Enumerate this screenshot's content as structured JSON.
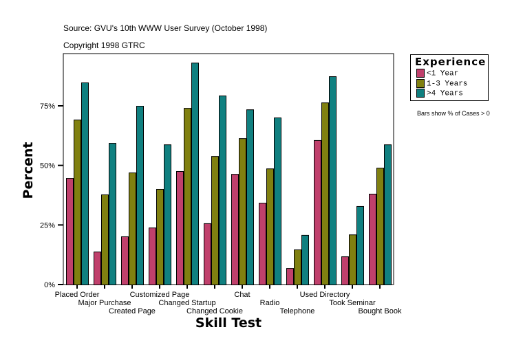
{
  "header": {
    "source": "Source: GVU's 10th WWW User Survey (October 1998)",
    "copyright": "Copyright 1998 GTRC"
  },
  "note": "Bars show % of Cases > 0",
  "chart_data": {
    "type": "bar",
    "xlabel": "Skill Test",
    "ylabel": "Percent",
    "ylim": [
      0,
      100
    ],
    "yticks": [
      "0%",
      "25%",
      "50%",
      "75%"
    ],
    "ytick_values": [
      0,
      25,
      50,
      75
    ],
    "legend_title": "Experience",
    "legend_position": "right",
    "grid": false,
    "categories": [
      "Placed Order",
      "Major Purchase",
      "Created Page",
      "Customized Page",
      "Changed Startup",
      "Changed Cookie",
      "Chat",
      "Radio",
      "Telephone",
      "Used Directory",
      "Took Seminar",
      "Bought Book"
    ],
    "series": [
      {
        "name": "<1 Year",
        "color": "#c0406c",
        "values": [
          44.7,
          13.8,
          20.2,
          23.9,
          47.6,
          25.7,
          46.4,
          34.3,
          6.9,
          60.6,
          11.8,
          38.1
        ]
      },
      {
        "name": "1-3 Years",
        "color": "#808010",
        "values": [
          69.2,
          37.8,
          47.0,
          40.1,
          74.1,
          53.9,
          61.4,
          48.7,
          14.7,
          76.4,
          21.0,
          49.0
        ]
      },
      {
        "name": ">4 Years",
        "color": "#108080",
        "values": [
          84.8,
          59.4,
          75.0,
          58.8,
          93.1,
          79.3,
          73.5,
          70.1,
          20.8,
          87.4,
          32.9,
          58.8
        ]
      }
    ]
  }
}
